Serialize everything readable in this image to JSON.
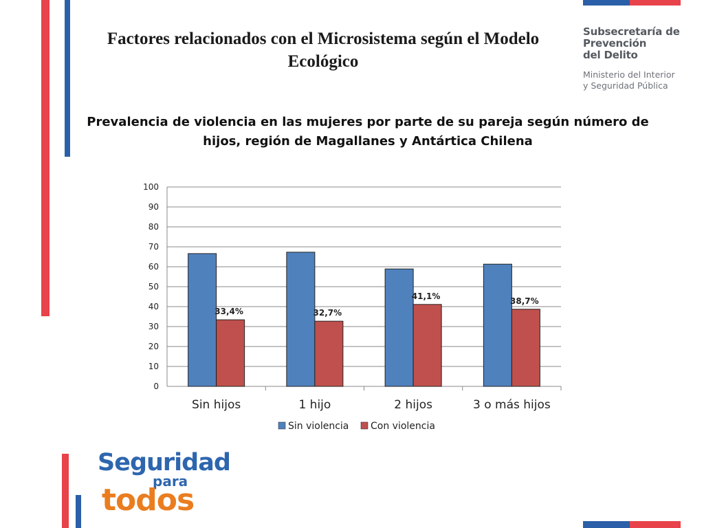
{
  "slide": {
    "title": "Factores relacionados con el Microsistema según el Modelo Ecológico"
  },
  "org": {
    "line1": "Subsecretaría de",
    "line2": "Prevención",
    "line3": "del Delito",
    "ministry_line1": "Ministerio del Interior",
    "ministry_line2": "y Seguridad Pública"
  },
  "logo": {
    "line1": "Seguridad",
    "line2": "para",
    "line3": "todos"
  },
  "colors": {
    "blue_series": "#4f81bd",
    "red_series": "#c0504d",
    "accent_red": "#e8424a",
    "accent_blue": "#2b5fa8",
    "logo_blue": "#2e66ae",
    "logo_orange": "#ea7d1f"
  },
  "chart_data": {
    "type": "bar",
    "title": "Prevalencia de violencia en las mujeres por parte de su pareja según número de hijos, región de Magallanes y Antártica Chilena",
    "categories": [
      "Sin hijos",
      "1 hijo",
      "2 hijos",
      "3 o más hijos"
    ],
    "series": [
      {
        "name": "Sin violencia",
        "values": [
          66.6,
          67.3,
          58.9,
          61.3
        ],
        "labels": [
          "",
          "",
          "",
          ""
        ]
      },
      {
        "name": "Con violencia",
        "values": [
          33.4,
          32.7,
          41.1,
          38.7
        ],
        "labels": [
          "33,4%",
          "32,7%",
          "41,1%",
          "38,7%"
        ]
      }
    ],
    "ylim": [
      0,
      100
    ],
    "yticks": [
      "0",
      "10",
      "20",
      "30",
      "40",
      "50",
      "60",
      "70",
      "80",
      "90",
      "100"
    ],
    "xlabel": "",
    "ylabel": "",
    "grid": true,
    "legend_position": "bottom"
  }
}
